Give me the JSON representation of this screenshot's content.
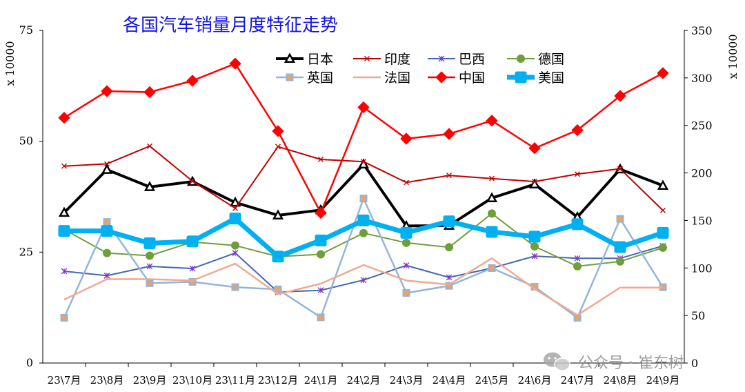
{
  "chart_data": {
    "type": "line",
    "title": "各国汽车销量月度特征走势",
    "categories": [
      "23\\7月",
      "23\\8月",
      "23\\9月",
      "23\\10月",
      "23\\11月",
      "23\\12月",
      "24\\1月",
      "24\\2月",
      "24\\3月",
      "24\\4月",
      "24\\5月",
      "24\\6月",
      "24\\7月",
      "24\\8月",
      "24\\9月"
    ],
    "y_left": {
      "unit": "x 10000",
      "range": [
        0,
        75
      ],
      "ticks": [
        "0",
        "25",
        "50",
        "75"
      ]
    },
    "y_right": {
      "unit": "x 10000",
      "range": [
        0,
        350
      ],
      "ticks": [
        "0",
        "50",
        "100",
        "150",
        "200",
        "250",
        "300",
        "350"
      ]
    },
    "grid": false,
    "legend": "top-center, 2 rows",
    "series": [
      {
        "name": "日本",
        "axis": "left",
        "color": "#000000",
        "marker": "triangle",
        "values": [
          33.9,
          43.6,
          39.7,
          40.9,
          36.2,
          33.3,
          34.5,
          44.8,
          30.9,
          31.0,
          37.2,
          40.3,
          32.9,
          43.7,
          40.0
        ]
      },
      {
        "name": "印度",
        "axis": "left",
        "color": "#c00000",
        "marker": "x",
        "values": [
          44.4,
          44.9,
          48.9,
          41.0,
          34.9,
          48.8,
          45.9,
          45.4,
          40.7,
          42.3,
          41.6,
          40.9,
          42.6,
          43.8,
          34.4
        ]
      },
      {
        "name": "巴西",
        "axis": "left",
        "color": "#4267b1",
        "marker": "star",
        "values": [
          20.7,
          19.7,
          21.8,
          21.3,
          24.8,
          16.0,
          16.4,
          18.7,
          22.0,
          19.3,
          21.4,
          24.1,
          23.6,
          23.6,
          26.4
        ]
      },
      {
        "name": "德国",
        "axis": "left",
        "color": "#6f9e3a",
        "marker": "circle",
        "values": [
          30.1,
          24.8,
          24.2,
          27.3,
          26.5,
          24.0,
          24.5,
          29.3,
          27.1,
          26.1,
          33.7,
          26.3,
          21.8,
          22.9,
          26.0
        ]
      },
      {
        "name": "英国",
        "axis": "left",
        "color": "#93b4dc",
        "marker": "square",
        "values": [
          10.2,
          31.8,
          18.0,
          18.3,
          17.1,
          16.6,
          10.3,
          37.1,
          15.8,
          17.4,
          21.4,
          17.2,
          10.2,
          32.5,
          17.1
        ]
      },
      {
        "name": "法国",
        "axis": "left",
        "color": "#f0a98c",
        "marker": "none",
        "values": [
          14.3,
          18.9,
          18.9,
          18.6,
          22.4,
          15.5,
          17.9,
          22.1,
          18.6,
          17.7,
          23.6,
          16.7,
          10.8,
          17.0,
          17.0
        ]
      },
      {
        "name": "中国",
        "axis": "right",
        "color": "#ff0000",
        "marker": "diamond",
        "values": [
          258,
          286,
          285,
          297,
          315,
          244,
          158,
          269,
          236,
          241,
          255,
          226,
          245,
          281,
          305
        ]
      },
      {
        "name": "美国",
        "axis": "right",
        "color": "#00b0f0",
        "marker": "square-rounded",
        "values": [
          139,
          139,
          126,
          128,
          152,
          112,
          129,
          150,
          137,
          149,
          138,
          133,
          146,
          122,
          137
        ]
      }
    ]
  },
  "watermark": {
    "text": "公众号 · 崔东树",
    "icon": "wechat-icon"
  }
}
